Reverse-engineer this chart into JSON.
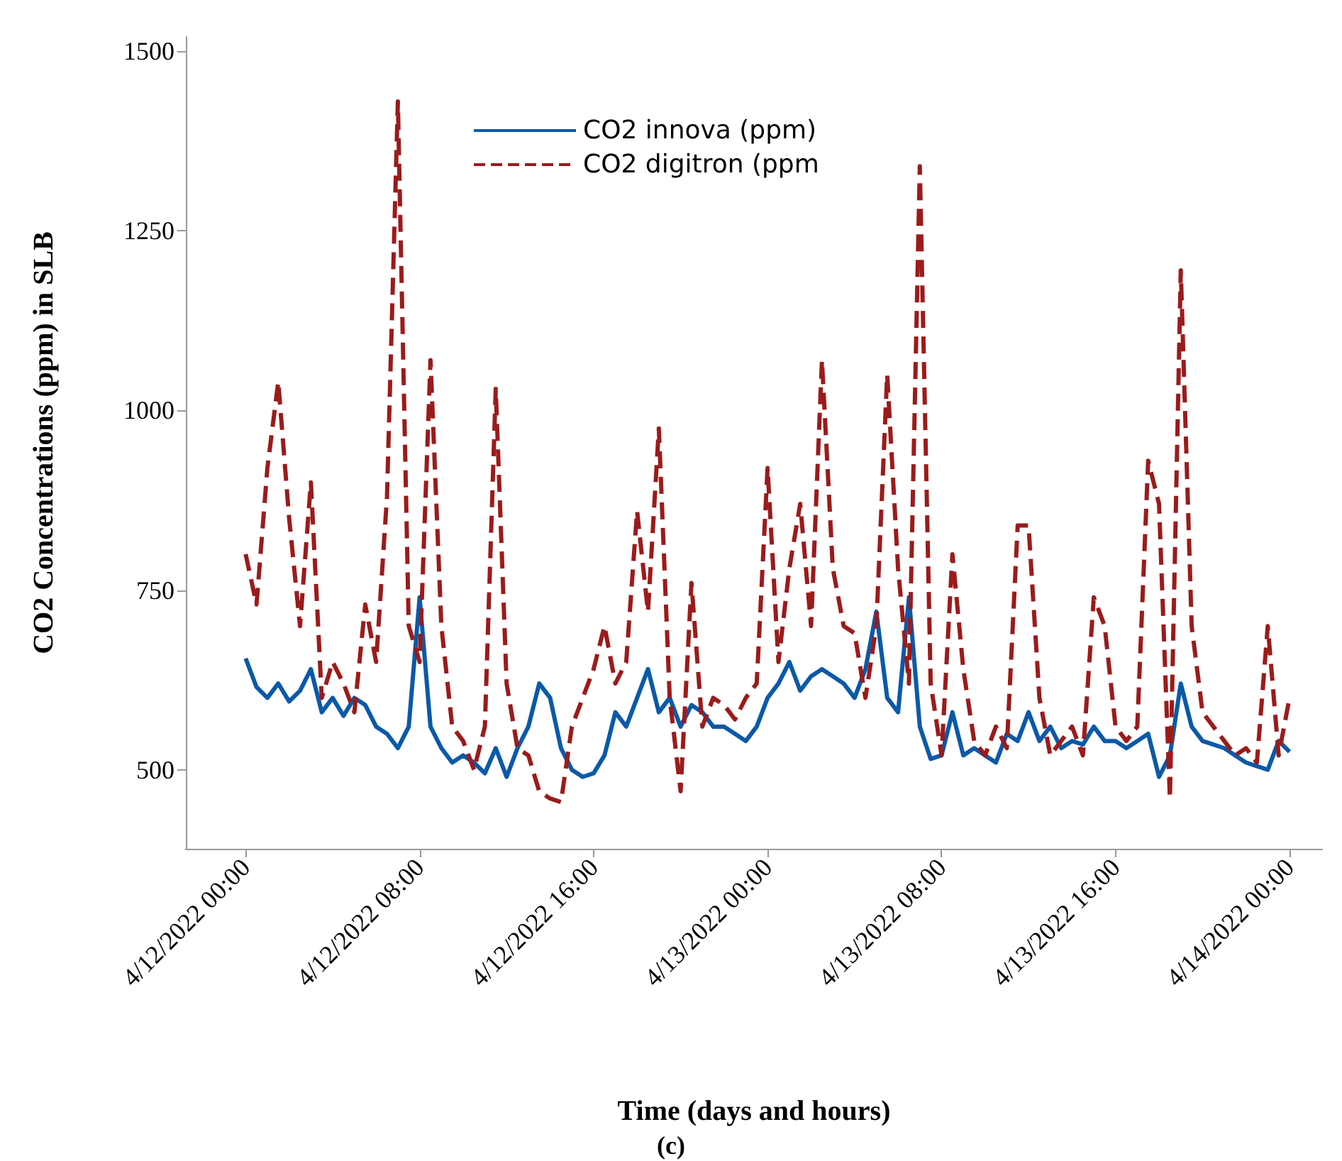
{
  "chart_data": {
    "type": "line",
    "xlabel": "Time (days and hours)",
    "ylabel": "CO2 Concentrations (ppm) in SLB",
    "annotations": [
      "(c)"
    ],
    "x": [
      "2022-04-12T00:00",
      "2022-04-12T00:30",
      "2022-04-12T01:00",
      "2022-04-12T01:30",
      "2022-04-12T02:00",
      "2022-04-12T02:30",
      "2022-04-12T03:00",
      "2022-04-12T03:30",
      "2022-04-12T04:00",
      "2022-04-12T04:30",
      "2022-04-12T05:00",
      "2022-04-12T05:30",
      "2022-04-12T06:00",
      "2022-04-12T06:30",
      "2022-04-12T07:00",
      "2022-04-12T07:30",
      "2022-04-12T08:00",
      "2022-04-12T08:30",
      "2022-04-12T09:00",
      "2022-04-12T09:30",
      "2022-04-12T10:00",
      "2022-04-12T10:30",
      "2022-04-12T11:00",
      "2022-04-12T11:30",
      "2022-04-12T12:00",
      "2022-04-12T12:30",
      "2022-04-12T13:00",
      "2022-04-12T13:30",
      "2022-04-12T14:00",
      "2022-04-12T14:30",
      "2022-04-12T15:00",
      "2022-04-12T15:30",
      "2022-04-12T16:00",
      "2022-04-12T16:30",
      "2022-04-12T17:00",
      "2022-04-12T17:30",
      "2022-04-12T18:00",
      "2022-04-12T18:30",
      "2022-04-12T19:00",
      "2022-04-12T19:30",
      "2022-04-12T20:00",
      "2022-04-12T20:30",
      "2022-04-12T21:00",
      "2022-04-12T21:30",
      "2022-04-12T22:00",
      "2022-04-12T22:30",
      "2022-04-12T23:00",
      "2022-04-12T23:30",
      "2022-04-13T00:00",
      "2022-04-13T00:30",
      "2022-04-13T01:00",
      "2022-04-13T01:30",
      "2022-04-13T02:00",
      "2022-04-13T02:30",
      "2022-04-13T03:00",
      "2022-04-13T03:30",
      "2022-04-13T04:00",
      "2022-04-13T04:30",
      "2022-04-13T05:00",
      "2022-04-13T05:30",
      "2022-04-13T06:00",
      "2022-04-13T06:30",
      "2022-04-13T07:00",
      "2022-04-13T07:30",
      "2022-04-13T08:00",
      "2022-04-13T08:30",
      "2022-04-13T09:00",
      "2022-04-13T09:30",
      "2022-04-13T10:00",
      "2022-04-13T10:30",
      "2022-04-13T11:00",
      "2022-04-13T11:30",
      "2022-04-13T12:00",
      "2022-04-13T12:30",
      "2022-04-13T13:00",
      "2022-04-13T13:30",
      "2022-04-13T14:00",
      "2022-04-13T14:30",
      "2022-04-13T15:00",
      "2022-04-13T15:30",
      "2022-04-13T16:00",
      "2022-04-13T16:30",
      "2022-04-13T17:00",
      "2022-04-13T17:30",
      "2022-04-13T18:00",
      "2022-04-13T18:30",
      "2022-04-13T19:00",
      "2022-04-13T19:30",
      "2022-04-13T20:00",
      "2022-04-13T20:30",
      "2022-04-13T21:00",
      "2022-04-13T21:30",
      "2022-04-13T22:00",
      "2022-04-13T22:30",
      "2022-04-13T23:00",
      "2022-04-13T23:30",
      "2022-04-14T00:00"
    ],
    "series": [
      {
        "name": "CO2 innova (ppm)",
        "color": "#0b59a8",
        "line_style": "solid",
        "values": [
          655,
          615,
          600,
          620,
          595,
          610,
          640,
          580,
          600,
          575,
          600,
          590,
          560,
          550,
          530,
          560,
          740,
          560,
          530,
          510,
          520,
          510,
          495,
          530,
          490,
          530,
          560,
          620,
          600,
          530,
          500,
          490,
          495,
          520,
          580,
          560,
          600,
          640,
          580,
          600,
          560,
          590,
          580,
          560,
          560,
          550,
          540,
          560,
          600,
          620,
          650,
          610,
          630,
          640,
          630,
          620,
          600,
          640,
          720,
          600,
          580,
          740,
          560,
          515,
          520,
          580,
          520,
          530,
          520,
          510,
          550,
          540,
          580,
          540,
          560,
          530,
          540,
          535,
          560,
          540,
          540,
          530,
          540,
          550,
          490,
          520,
          620,
          560,
          540,
          535,
          530,
          520,
          510,
          505,
          500,
          540,
          525
        ]
      },
      {
        "name": "CO2 digitron (ppm",
        "color": "#9b1b1b",
        "line_style": "dashed",
        "values": [
          800,
          730,
          920,
          1040,
          850,
          700,
          900,
          600,
          650,
          620,
          580,
          730,
          650,
          880,
          1430,
          700,
          650,
          1070,
          700,
          560,
          540,
          500,
          560,
          1030,
          620,
          530,
          520,
          470,
          460,
          455,
          560,
          600,
          640,
          700,
          620,
          650,
          860,
          720,
          975,
          600,
          470,
          760,
          560,
          600,
          590,
          570,
          600,
          620,
          920,
          650,
          780,
          870,
          700,
          1070,
          780,
          700,
          690,
          600,
          700,
          1050,
          780,
          620,
          1340,
          620,
          520,
          800,
          640,
          540,
          520,
          560,
          530,
          840,
          840,
          600,
          520,
          540,
          560,
          520,
          740,
          700,
          560,
          540,
          560,
          930,
          870,
          460,
          1195,
          700,
          580,
          560,
          540,
          520,
          530,
          510,
          700,
          520,
          600
        ]
      }
    ],
    "xlim": [
      "2022-04-11T21:15",
      "2022-04-14T01:30"
    ],
    "xticks": [
      {
        "value": "2022-04-12T00:00",
        "label": "4/12/2022 00:00"
      },
      {
        "value": "2022-04-12T08:00",
        "label": "4/12/2022 08:00"
      },
      {
        "value": "2022-04-12T16:00",
        "label": "4/12/2022 16:00"
      },
      {
        "value": "2022-04-13T00:00",
        "label": "4/13/2022 00:00"
      },
      {
        "value": "2022-04-13T08:00",
        "label": "4/13/2022 08:00"
      },
      {
        "value": "2022-04-13T16:00",
        "label": "4/13/2022 16:00"
      },
      {
        "value": "2022-04-14T00:00",
        "label": "4/14/2022 00:00"
      }
    ],
    "ylim": [
      390,
      1520
    ],
    "yticks": [
      500,
      750,
      1000,
      1250,
      1500
    ],
    "grid": false,
    "legend": "top",
    "marker": "none"
  }
}
